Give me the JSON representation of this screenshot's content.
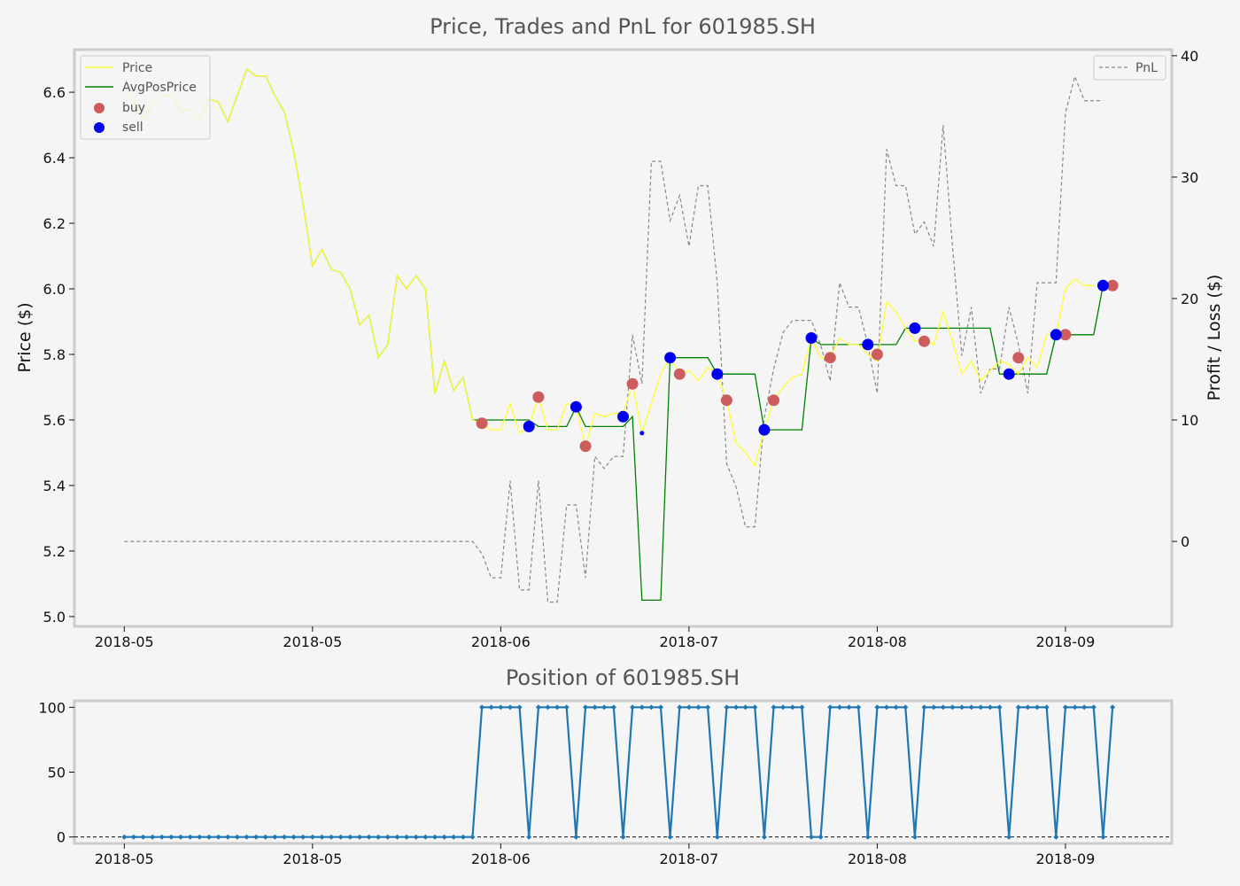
{
  "colors": {
    "background": "#f5f5f5",
    "frame": "#cccccc",
    "price": "#ffff33",
    "avgpos": "#008000",
    "pnl": "#888888",
    "buy": "#cd5c5c",
    "sell": "#0000ee",
    "position": "#1f77b4"
  },
  "chart_data": [
    {
      "type": "line",
      "title": "Price, Trades and PnL for 601985.SH",
      "ylabel": "Price ($)",
      "y2label": "Profit / Loss ($)",
      "ylim": [
        4.97,
        6.73
      ],
      "y2lim": [
        -7,
        40.5
      ],
      "xlim": [
        -5.3,
        111.3
      ],
      "yticks": [
        "5.0",
        "5.2",
        "5.4",
        "5.6",
        "5.8",
        "6.0",
        "6.2",
        "6.4",
        "6.6"
      ],
      "y2ticks": [
        "0",
        "10",
        "20",
        "30",
        "40"
      ],
      "x_tick_index": [
        0,
        20,
        40,
        60,
        80,
        100
      ],
      "x_tick_labels": [
        "2018-05",
        "2018-05",
        "2018-06",
        "2018-07",
        "2018-08",
        "2018-09"
      ],
      "grid": false,
      "legends": [
        {
          "placement": "top-left",
          "entries": [
            "Price",
            "AvgPosPrice",
            "buy",
            "sell"
          ]
        },
        {
          "placement": "top-right",
          "entries": [
            "PnL"
          ]
        }
      ],
      "series": [
        {
          "name": "Price",
          "axis": "left",
          "x_start": 0,
          "values": [
            6.62,
            6.57,
            6.52,
            6.56,
            6.59,
            6.59,
            6.54,
            6.55,
            6.52,
            6.58,
            6.57,
            6.51,
            6.59,
            6.67,
            6.65,
            6.65,
            6.59,
            6.54,
            6.42,
            6.26,
            6.07,
            6.12,
            6.06,
            6.05,
            6.0,
            5.89,
            5.92,
            5.79,
            5.83,
            6.04,
            6.0,
            6.04,
            6.0,
            5.68,
            5.78,
            5.69,
            5.73,
            5.6,
            5.59,
            5.57,
            5.57,
            5.65,
            5.56,
            5.58,
            5.67,
            5.57,
            5.57,
            5.65,
            5.64,
            5.52,
            5.62,
            5.61,
            5.62,
            5.62,
            5.71,
            5.56,
            5.65,
            5.74,
            5.79,
            5.74,
            5.75,
            5.72,
            5.76,
            5.74,
            5.66,
            5.53,
            5.5,
            5.46,
            5.57,
            5.66,
            5.7,
            5.73,
            5.74,
            5.85,
            5.79,
            5.79,
            5.85,
            5.83,
            5.83,
            5.8,
            5.78,
            5.96,
            5.93,
            5.88,
            5.84,
            5.85,
            5.83,
            5.93,
            5.84,
            5.74,
            5.78,
            5.72,
            5.75,
            5.78,
            5.77,
            5.74,
            5.79,
            5.76,
            5.86,
            5.86,
            6.0,
            6.03,
            6.01,
            6.01
          ]
        },
        {
          "name": "AvgPosPrice",
          "axis": "left",
          "x_start": 0,
          "values": [
            6.62,
            6.57,
            6.52,
            6.56,
            6.59,
            6.59,
            6.54,
            6.55,
            6.52,
            6.58,
            6.57,
            6.51,
            6.59,
            6.67,
            6.65,
            6.65,
            6.59,
            6.54,
            6.42,
            6.26,
            6.07,
            6.12,
            6.06,
            6.05,
            6.0,
            5.89,
            5.92,
            5.79,
            5.83,
            6.04,
            6.0,
            6.04,
            6.0,
            5.68,
            5.78,
            5.69,
            5.73,
            5.6,
            5.6,
            5.6,
            5.6,
            5.6,
            5.6,
            5.6,
            5.58,
            5.58,
            5.58,
            5.58,
            5.64,
            5.58,
            5.58,
            5.58,
            5.58,
            5.58,
            5.61,
            5.05,
            5.05,
            5.05,
            5.79,
            5.79,
            5.79,
            5.79,
            5.79,
            5.74,
            5.74,
            5.74,
            5.74,
            5.74,
            5.57,
            5.57,
            5.57,
            5.57,
            5.57,
            5.85,
            5.83,
            5.83,
            5.83,
            5.83,
            5.83,
            5.83,
            5.83,
            5.83,
            5.83,
            5.88,
            5.88,
            5.88,
            5.88,
            5.88,
            5.88,
            5.88,
            5.88,
            5.88,
            5.88,
            5.74,
            5.74,
            5.74,
            5.74,
            5.74,
            5.74,
            5.86,
            5.86,
            5.86,
            5.86,
            5.86,
            6.01
          ]
        },
        {
          "name": "PnL",
          "axis": "right",
          "x_start": 0,
          "values": [
            0,
            0,
            0,
            0,
            0,
            0,
            0,
            0,
            0,
            0,
            0,
            0,
            0,
            0,
            0,
            0,
            0,
            0,
            0,
            0,
            0,
            0,
            0,
            0,
            0,
            0,
            0,
            0,
            0,
            0,
            0,
            0,
            0,
            0,
            0,
            0,
            0,
            0,
            -1,
            -3,
            -3,
            5,
            -4,
            -4,
            5,
            -5,
            -5,
            3,
            3,
            -3,
            7,
            6,
            7,
            7,
            17,
            13,
            31.3,
            31.3,
            26.4,
            28.5,
            24.3,
            29.3,
            29.3,
            21.3,
            6.4,
            4.5,
            1.2,
            1.2,
            10.2,
            14.2,
            17.2,
            18.2,
            18.2,
            18.2,
            16.2,
            13.2,
            21.3,
            19.3,
            19.3,
            16.2,
            12.2,
            32.3,
            29.3,
            29.3,
            25.3,
            26.3,
            24.3,
            34.3,
            24.3,
            15.3,
            19.3,
            12.2,
            14.2,
            14.2,
            19.3,
            16.2,
            12.2,
            21.3,
            21.3,
            21.3,
            35.3,
            38.3,
            36.3,
            36.3,
            36.3
          ]
        },
        {
          "name": "buy",
          "type": "scatter",
          "axis": "left",
          "points": [
            [
              38,
              5.59
            ],
            [
              44,
              5.67
            ],
            [
              49,
              5.52
            ],
            [
              54,
              5.71
            ],
            [
              59,
              5.74
            ],
            [
              64,
              5.66
            ],
            [
              69,
              5.66
            ],
            [
              75,
              5.79
            ],
            [
              80,
              5.8
            ],
            [
              85,
              5.84
            ],
            [
              95,
              5.79
            ],
            [
              100,
              5.86
            ],
            [
              105,
              6.01
            ]
          ]
        },
        {
          "name": "sell",
          "type": "scatter",
          "axis": "left",
          "points": [
            [
              43,
              5.58
            ],
            [
              48,
              5.64
            ],
            [
              53,
              5.61
            ],
            [
              55,
              5.56
            ],
            [
              58,
              5.79
            ],
            [
              63,
              5.74
            ],
            [
              68,
              5.57
            ],
            [
              73,
              5.85
            ],
            [
              79,
              5.83
            ],
            [
              84,
              5.88
            ],
            [
              94,
              5.74
            ],
            [
              99,
              5.86
            ],
            [
              104,
              6.01
            ]
          ]
        }
      ]
    },
    {
      "type": "line",
      "title": "Position of 601985.SH",
      "ylim": [
        -5,
        105
      ],
      "xlim": [
        -5.3,
        111.3
      ],
      "yticks": [
        "0",
        "50",
        "100"
      ],
      "x_tick_index": [
        0,
        20,
        40,
        60,
        80,
        100
      ],
      "x_tick_labels": [
        "2018-05",
        "2018-05",
        "2018-06",
        "2018-07",
        "2018-08",
        "2018-09"
      ],
      "baseline": 0,
      "series": [
        {
          "name": "Position",
          "x_start": 0,
          "values": [
            0,
            0,
            0,
            0,
            0,
            0,
            0,
            0,
            0,
            0,
            0,
            0,
            0,
            0,
            0,
            0,
            0,
            0,
            0,
            0,
            0,
            0,
            0,
            0,
            0,
            0,
            0,
            0,
            0,
            0,
            0,
            0,
            0,
            0,
            0,
            0,
            0,
            0,
            100,
            100,
            100,
            100,
            100,
            0,
            100,
            100,
            100,
            100,
            0,
            100,
            100,
            100,
            100,
            0,
            100,
            100,
            100,
            100,
            0,
            100,
            100,
            100,
            100,
            0,
            100,
            100,
            100,
            100,
            0,
            100,
            100,
            100,
            100,
            0,
            0,
            100,
            100,
            100,
            100,
            0,
            100,
            100,
            100,
            100,
            0,
            100,
            100,
            100,
            100,
            100,
            100,
            100,
            100,
            100,
            0,
            100,
            100,
            100,
            100,
            0,
            100,
            100,
            100,
            100,
            0,
            100
          ]
        }
      ]
    }
  ]
}
